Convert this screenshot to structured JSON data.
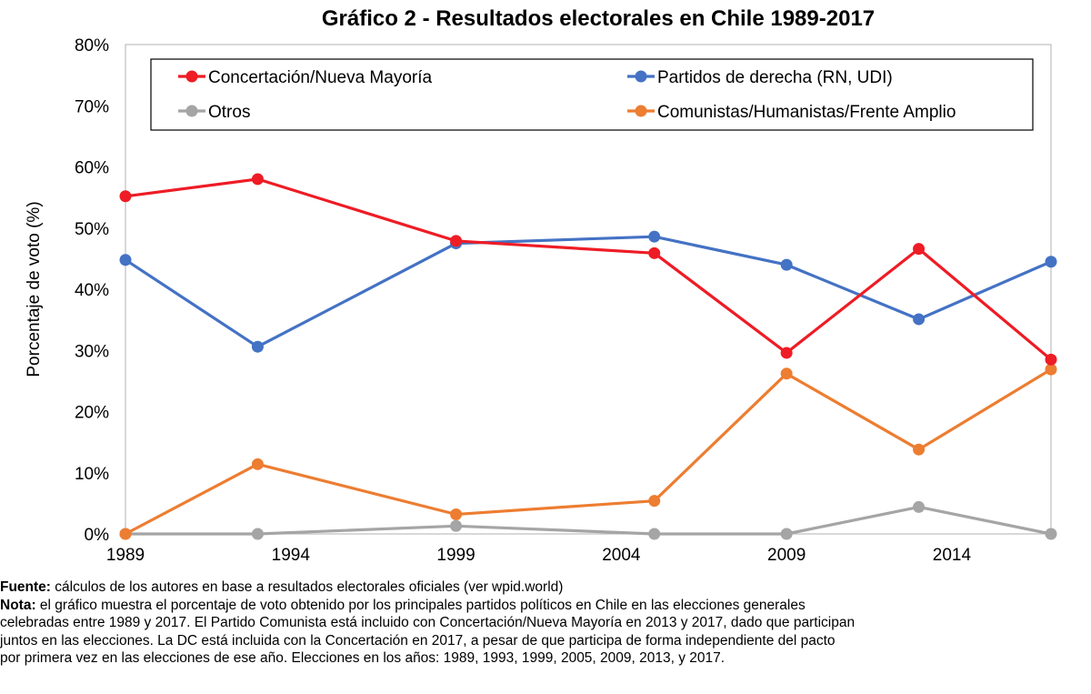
{
  "chart_data": {
    "type": "line",
    "title": "Gráfico 2 - Resultados electorales en Chile 1989-2017",
    "xlabel": "",
    "ylabel": "Porcentaje de voto (%)",
    "x": [
      1989,
      1993,
      1999,
      2005,
      2009,
      2013,
      2017
    ],
    "xlim": [
      1989,
      2017
    ],
    "ylim": [
      0,
      80
    ],
    "x_ticks": [
      1989,
      1994,
      1999,
      2004,
      2009,
      2014
    ],
    "x_tick_labels": [
      "1989",
      "1994",
      "1999",
      "2004",
      "2009",
      "2014"
    ],
    "y_ticks": [
      0,
      10,
      20,
      30,
      40,
      50,
      60,
      70,
      80
    ],
    "y_tick_labels": [
      "0%",
      "10%",
      "20%",
      "30%",
      "40%",
      "50%",
      "60%",
      "70%",
      "80%"
    ],
    "grid": false,
    "legend_position": "top",
    "series": [
      {
        "name": "Concertación/Nueva Mayoría",
        "color": "#ee1c25",
        "values": [
          55.2,
          58.0,
          47.9,
          45.9,
          29.6,
          46.6,
          28.5
        ]
      },
      {
        "name": "Partidos de derecha (RN, UDI)",
        "color": "#4472c4",
        "values": [
          44.8,
          30.6,
          47.5,
          48.6,
          44.0,
          35.1,
          44.5
        ]
      },
      {
        "name": "Otros",
        "color": "#a5a5a5",
        "values": [
          0,
          0,
          1.3,
          0,
          0,
          4.4,
          0
        ]
      },
      {
        "name": "Comunistas/Humanistas/Frente Amplio",
        "color": "#ed7d31",
        "values": [
          0,
          11.4,
          3.2,
          5.4,
          26.2,
          13.8,
          26.9
        ]
      }
    ]
  },
  "notes": {
    "fuente_label": "Fuente:",
    "fuente_text": " cálculos de los autores en base a resultados electorales oficiales (ver wpid.world)",
    "nota_label": "Nota:",
    "nota_line1": " el gráfico muestra el porcentaje de voto obtenido por los principales partidos políticos en Chile en las elecciones generales",
    "nota_line2": "celebradas entre 1989 y 2017. El Partido Comunista está incluido con Concertación/Nueva Mayoría en 2013 y 2017, dado que participan",
    "nota_line3": "juntos en las elecciones. La DC está incluida con la Concertación en 2017, a pesar de que participa de forma independiente del pacto",
    "nota_line4": "por primera vez en las elecciones de ese año. Elecciones en los años: 1989, 1993, 1999, 2005, 2009, 2013, y 2017."
  }
}
